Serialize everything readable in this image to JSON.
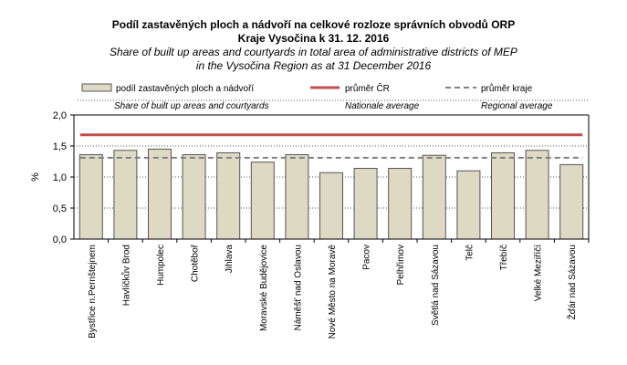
{
  "chart_data": {
    "type": "bar",
    "title": "Podíl zastavěných ploch a nádvoří na celkové rozloze správních obvodů ORP",
    "title2": "Kraje Vysočina k 31. 12. 2016",
    "subtitle": "Share of built up areas and courtyards in total area of administrative districts of MEP",
    "subtitle2": "in the Vysočina Region as at 31 December 2016",
    "ylabel": "%",
    "ylim": [
      0,
      2
    ],
    "yticks": [
      "0,0",
      "0,5",
      "1,0",
      "1,5",
      "2,0"
    ],
    "ytick_values": [
      0,
      0.5,
      1,
      1.5,
      2
    ],
    "grid": true,
    "legend_position": "top",
    "legend": [
      {
        "label": "podíl zastavěných ploch a nádvoří",
        "sublabel": "Share of built up areas and courtyards"
      },
      {
        "label": "průměr ČR",
        "sublabel": "Nationale average"
      },
      {
        "label": "průměr kraje",
        "sublabel": "Regional average"
      }
    ],
    "categories": [
      "Bystřice n.Pernštejnem",
      "Havlíčkův Brod",
      "Humpolec",
      "Chotěboř",
      "Jihlava",
      "Moravské Budějovice",
      "Náměšť nad Oslavou",
      "Nové Město na Moravě",
      "Pacov",
      "Pelhřimov",
      "Světlá nad Sázavou",
      "Telč",
      "Třebíč",
      "Velké Meziříčí",
      "Žďár nad Sázavou"
    ],
    "values": [
      1.36,
      1.43,
      1.45,
      1.36,
      1.39,
      1.24,
      1.36,
      1.07,
      1.14,
      1.14,
      1.35,
      1.1,
      1.39,
      1.43,
      1.2
    ],
    "national_average": 1.68,
    "regional_average": 1.31,
    "colors": {
      "bar": "#ddd9c3",
      "bar_edge": "#555555",
      "national": "#c0504d",
      "regional": "#808080"
    }
  }
}
